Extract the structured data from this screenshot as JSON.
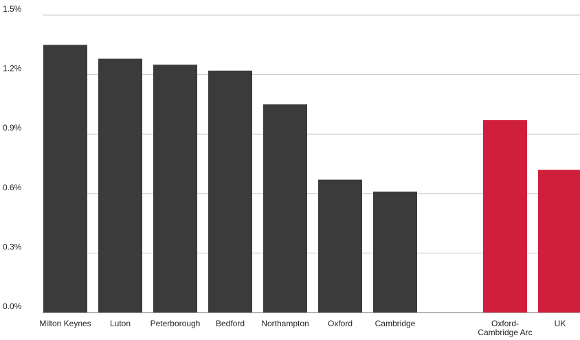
{
  "chart_data": {
    "type": "bar",
    "title": "",
    "xlabel": "",
    "ylabel": "",
    "ylim": [
      0,
      1.5
    ],
    "yticks": [
      0.0,
      0.3,
      0.6,
      0.9,
      1.2,
      1.5
    ],
    "ytick_labels": [
      "0.0%",
      "0.3%",
      "0.6%",
      "0.9%",
      "1.2%",
      "1.5%"
    ],
    "grid": true,
    "categories": [
      {
        "label_lines": [
          "Milton Keynes"
        ],
        "value": 1.35,
        "color": "#3b3b3b"
      },
      {
        "label_lines": [
          "Luton"
        ],
        "value": 1.28,
        "color": "#3b3b3b"
      },
      {
        "label_lines": [
          "Peterborough"
        ],
        "value": 1.25,
        "color": "#3b3b3b"
      },
      {
        "label_lines": [
          "Bedford"
        ],
        "value": 1.22,
        "color": "#3b3b3b"
      },
      {
        "label_lines": [
          "Northampton"
        ],
        "value": 1.05,
        "color": "#3b3b3b"
      },
      {
        "label_lines": [
          "Oxford"
        ],
        "value": 0.67,
        "color": "#3b3b3b"
      },
      {
        "label_lines": [
          "Cambridge"
        ],
        "value": 0.61,
        "color": "#3b3b3b"
      },
      {
        "label_lines": [
          "Oxford-",
          "Cambridge Arc"
        ],
        "value": 0.97,
        "color": "#d01f3c"
      },
      {
        "label_lines": [
          "UK"
        ],
        "value": 0.72,
        "color": "#d01f3c"
      }
    ]
  }
}
